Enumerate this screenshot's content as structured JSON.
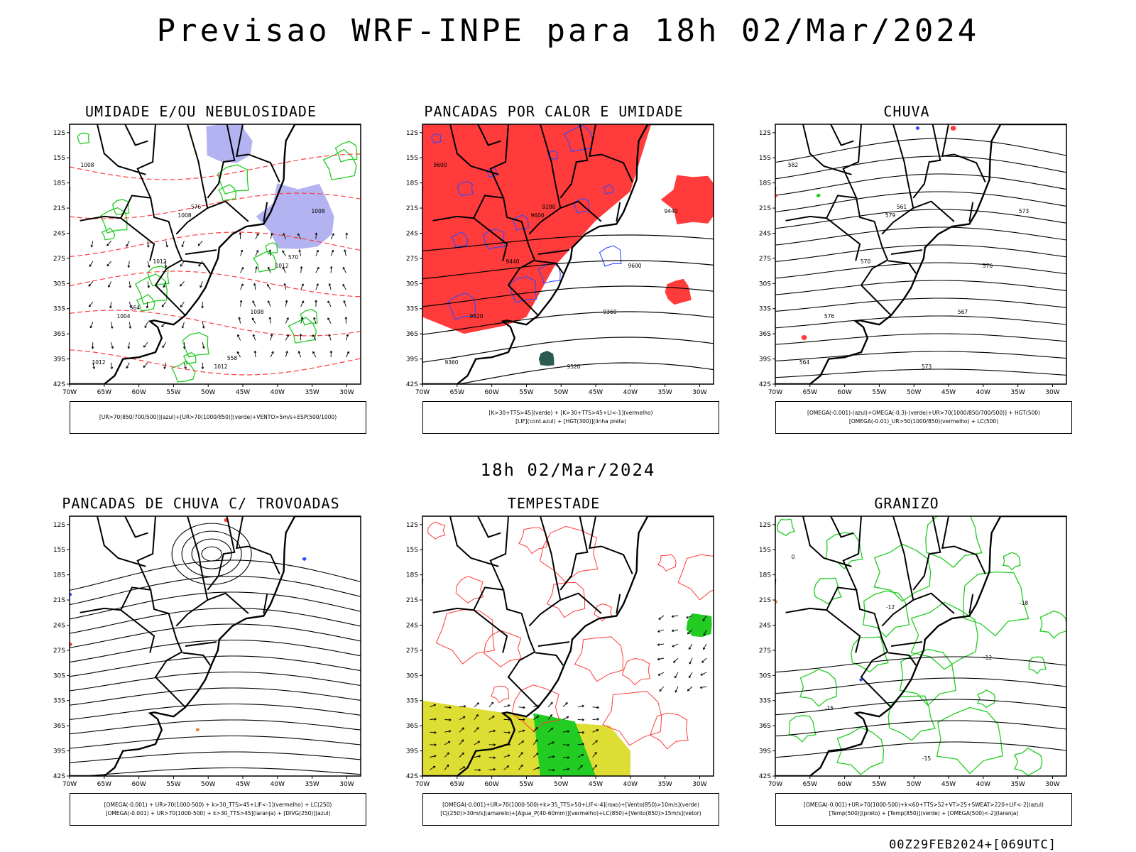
{
  "title": "Previsao WRF-INPE  para 18h 02/Mar/2024",
  "mid_title": "18h 02/Mar/2024",
  "footer": "00Z29FEB2024+[069UTC]",
  "axes": {
    "lat_ticks": [
      "12S",
      "15S",
      "18S",
      "21S",
      "24S",
      "27S",
      "30S",
      "33S",
      "36S",
      "39S",
      "42S"
    ],
    "lon_ticks": [
      "70W",
      "65W",
      "60W",
      "55W",
      "50W",
      "45W",
      "40W",
      "35W",
      "30W"
    ]
  },
  "colors": {
    "red": "#ff3b3b",
    "blue": "#2f4bff",
    "green": "#22cc22",
    "lavender": "#a6a6ee",
    "yellow": "#dddd33",
    "orange": "#e08830",
    "teal": "#2a5a50"
  },
  "panels": [
    {
      "title": "UMIDADE E/OU NEBULOSIDADE",
      "legend": [
        "[UR>70(850/700/500)](azul)+[UR>70(1000/850)](verde)+VENTO>5m/s+ESP(500/1000)"
      ],
      "labels": [
        "1008",
        "1008",
        "1012",
        "1004",
        "1012",
        "1008",
        "1012",
        "1008",
        "1012",
        "576",
        "570",
        "564",
        "558"
      ]
    },
    {
      "title": "PANCADAS POR CALOR E UMIDADE",
      "legend": [
        "[K>30+TTS>45](verde) + [K>30+TTS>45+LI<-1](vermelho)",
        "[LIF](cont.azul) + [HGT(300)](linha preta)"
      ],
      "labels": [
        "9600",
        "9600",
        "9600",
        "9520",
        "9520",
        "9440",
        "9440",
        "9360",
        "9360",
        "9280"
      ]
    },
    {
      "title": "CHUVA",
      "legend": [
        "[OMEGA(-0.001)-(azul)+OMEGA(-0.3)-(verde)+UR>70(1000/850/700/500)] + HGT(500)",
        "[OMEGA(-0.01)_UR>50(1000/850)(vermelho) + LC(500)"
      ],
      "labels": [
        "582",
        "579",
        "576",
        "576",
        "573",
        "573",
        "570",
        "567",
        "564",
        "561"
      ]
    },
    {
      "title": "PANCADAS DE CHUVA C/ TROVOADAS",
      "legend": [
        "[OMEGA(-0.001) + UR>70(1000-500) + k>30_TTS>45+LIF<-1](vermelho) + LC(250)",
        "[OMEGA(-0.001) + UR>70(1000-500) + k>30_TTS>45](laranja) + [DIVG(250)](azul)"
      ],
      "labels": []
    },
    {
      "title": "TEMPESTADE",
      "legend": [
        "[OMEGA(-0.001)+UR>70(1000-500)+k>35_TTS>50+LIF<-4](roxo)+[Vento(850)>10m/s](verde)",
        "[CJ(250)>30m/s](amarelo)+[Agua_P(40-60mm)](vermelho)+LC(850)+[Vento(850)>15m/s](vetor)"
      ],
      "labels": []
    },
    {
      "title": "GRANIZO",
      "legend": [
        "[OMEGA(-0.001)+UR>70(1000-500)+k<60+TTS>52+VT>25+SWEAT>220+LIF<-2](azul)",
        "[Temp(500)](preto) + [Temp(850)](verde) + [OMEGA(500)<-2](laranja)"
      ],
      "labels": [
        "0",
        "-12",
        "-12",
        "-15",
        "-15",
        "-18"
      ]
    }
  ]
}
